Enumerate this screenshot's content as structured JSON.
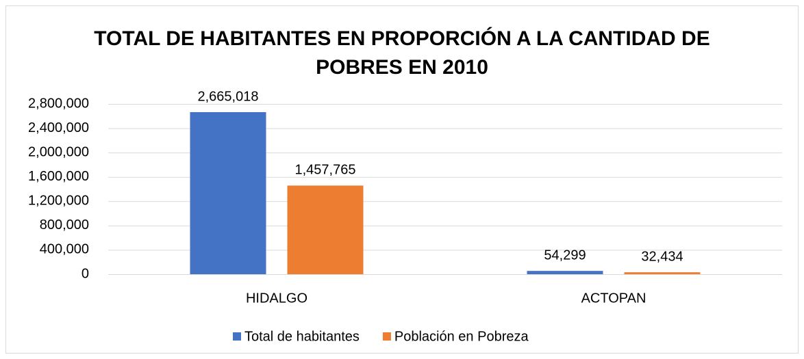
{
  "chart_data": {
    "type": "bar",
    "title": "TOTAL DE HABITANTES EN PROPORCIÓN A LA CANTIDAD DE POBRES EN 2010",
    "categories": [
      "HIDALGO",
      "ACTOPAN"
    ],
    "series": [
      {
        "name": "Total de habitantes",
        "color": "#4472c4",
        "values": [
          2665018,
          54299
        ],
        "value_labels": [
          "2,665,018",
          "54,299"
        ]
      },
      {
        "name": "Población en Pobreza",
        "color": "#ed7d31",
        "values": [
          1457765,
          32434
        ],
        "value_labels": [
          "1,457,765",
          "32,434"
        ]
      }
    ],
    "ylim": [
      0,
      2800000
    ],
    "yticks": [
      0,
      {
        "value": 400000,
        "label": "400,000"
      },
      {
        "value": 800000,
        "label": "800,000"
      },
      {
        "value": 1200000,
        "label": "1,200,000"
      },
      {
        "value": 1600000,
        "label": "1,600,000"
      },
      {
        "value": 2000000,
        "label": "2,000,000"
      },
      {
        "value": 2400000,
        "label": "2,400,000"
      },
      {
        "value": 2800000,
        "label": "2,800,000"
      }
    ],
    "grid": true,
    "legend": "bottom"
  }
}
